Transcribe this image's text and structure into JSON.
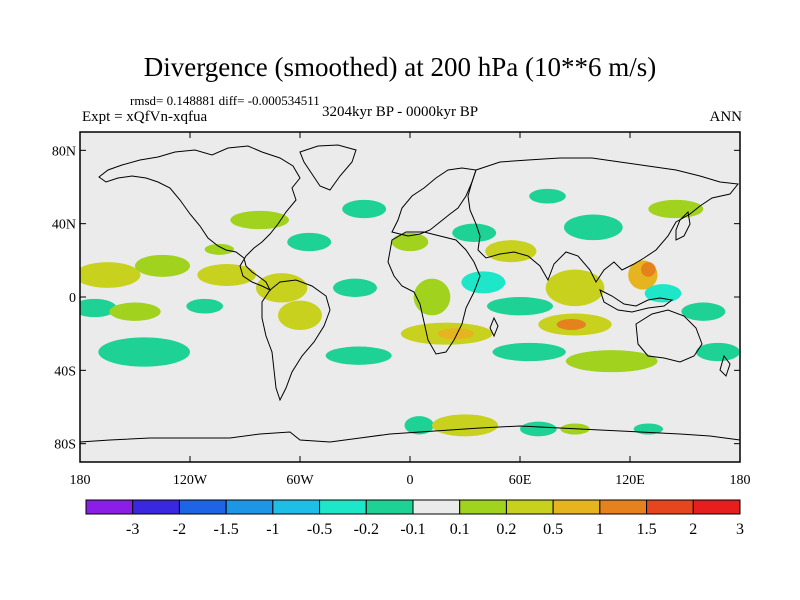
{
  "header": {
    "title": "Divergence (smoothed) at 200 hPa (10**6 m/s)",
    "stats": "rmsd= 0.148881 diff= -0.000534511",
    "experiment": "Expt = xQfVn-xqfua",
    "period": "3204kyr BP - 0000kyr BP",
    "season": "ANN"
  },
  "axes": {
    "lat_ticks": [
      {
        "label": "80N",
        "lat": 80
      },
      {
        "label": "40N",
        "lat": 40
      },
      {
        "label": "0",
        "lat": 0
      },
      {
        "label": "40S",
        "lat": -40
      },
      {
        "label": "80S",
        "lat": -80
      }
    ],
    "lon_ticks": [
      {
        "label": "180",
        "lon": -180
      },
      {
        "label": "120W",
        "lon": -120
      },
      {
        "label": "60W",
        "lon": -60
      },
      {
        "label": "0",
        "lon": 0
      },
      {
        "label": "60E",
        "lon": 60
      },
      {
        "label": "120E",
        "lon": 120
      },
      {
        "label": "180",
        "lon": 180
      }
    ],
    "lon_range": [
      -180,
      180
    ],
    "lat_range": [
      -90,
      90
    ]
  },
  "colorbar": {
    "labels": [
      "-3",
      "-2",
      "-1.5",
      "-1",
      "-0.5",
      "-0.2",
      "-0.1",
      "0.1",
      "0.2",
      "0.5",
      "1",
      "1.5",
      "2",
      "3"
    ],
    "colors": [
      "#8a1ee6",
      "#3a28e0",
      "#1e64e6",
      "#1e96e6",
      "#1ebee6",
      "#1ee6c8",
      "#1ed296",
      "#ebebeb",
      "#a0d21e",
      "#c8d21e",
      "#e6b41e",
      "#e6821e",
      "#e6461e",
      "#e61e1e"
    ]
  },
  "colors": {
    "background": "#ebebeb",
    "pos_low": "#a0d21e",
    "pos_mid": "#c8d21e",
    "pos_high": "#e6b41e",
    "pos_vhigh": "#e6821e",
    "neg_low": "#1ed296",
    "neg_mid": "#1ee6c8"
  },
  "field": {
    "blobs": [
      {
        "lon": -165,
        "lat": 12,
        "rx": 18,
        "ry": 7,
        "level": "pos_mid"
      },
      {
        "lon": -172,
        "lat": -6,
        "rx": 12,
        "ry": 5,
        "level": "neg_low"
      },
      {
        "lon": -150,
        "lat": -8,
        "rx": 14,
        "ry": 5,
        "level": "pos_low"
      },
      {
        "lon": -135,
        "lat": 17,
        "rx": 15,
        "ry": 6,
        "level": "pos_low"
      },
      {
        "lon": -145,
        "lat": -30,
        "rx": 25,
        "ry": 8,
        "level": "neg_low"
      },
      {
        "lon": -112,
        "lat": -5,
        "rx": 10,
        "ry": 4,
        "level": "neg_low"
      },
      {
        "lon": -100,
        "lat": 12,
        "rx": 16,
        "ry": 6,
        "level": "pos_mid"
      },
      {
        "lon": -104,
        "lat": 26,
        "rx": 8,
        "ry": 3,
        "level": "pos_low"
      },
      {
        "lon": -82,
        "lat": 42,
        "rx": 16,
        "ry": 5,
        "level": "pos_low"
      },
      {
        "lon": -55,
        "lat": 30,
        "rx": 12,
        "ry": 5,
        "level": "neg_low"
      },
      {
        "lon": -70,
        "lat": 5,
        "rx": 14,
        "ry": 8,
        "level": "pos_mid"
      },
      {
        "lon": -60,
        "lat": -10,
        "rx": 12,
        "ry": 8,
        "level": "pos_mid"
      },
      {
        "lon": -30,
        "lat": 5,
        "rx": 12,
        "ry": 5,
        "level": "neg_low"
      },
      {
        "lon": -28,
        "lat": -32,
        "rx": 18,
        "ry": 5,
        "level": "neg_low"
      },
      {
        "lon": -25,
        "lat": 48,
        "rx": 12,
        "ry": 5,
        "level": "neg_low"
      },
      {
        "lon": 0,
        "lat": 30,
        "rx": 10,
        "ry": 5,
        "level": "pos_low"
      },
      {
        "lon": 12,
        "lat": 0,
        "rx": 10,
        "ry": 10,
        "level": "pos_low"
      },
      {
        "lon": 20,
        "lat": -20,
        "rx": 25,
        "ry": 6,
        "level": "pos_mid"
      },
      {
        "lon": 25,
        "lat": -20,
        "rx": 10,
        "ry": 3,
        "level": "pos_high"
      },
      {
        "lon": 35,
        "lat": 35,
        "rx": 12,
        "ry": 5,
        "level": "neg_low"
      },
      {
        "lon": 40,
        "lat": 8,
        "rx": 12,
        "ry": 6,
        "level": "neg_mid"
      },
      {
        "lon": 55,
        "lat": 25,
        "rx": 14,
        "ry": 6,
        "level": "pos_mid"
      },
      {
        "lon": 60,
        "lat": -5,
        "rx": 18,
        "ry": 5,
        "level": "neg_low"
      },
      {
        "lon": 75,
        "lat": 55,
        "rx": 10,
        "ry": 4,
        "level": "neg_low"
      },
      {
        "lon": 65,
        "lat": -30,
        "rx": 20,
        "ry": 5,
        "level": "neg_low"
      },
      {
        "lon": 90,
        "lat": 5,
        "rx": 16,
        "ry": 10,
        "level": "pos_mid"
      },
      {
        "lon": 100,
        "lat": 38,
        "rx": 16,
        "ry": 7,
        "level": "neg_low"
      },
      {
        "lon": 90,
        "lat": -15,
        "rx": 20,
        "ry": 6,
        "level": "pos_mid"
      },
      {
        "lon": 88,
        "lat": -15,
        "rx": 8,
        "ry": 3,
        "level": "pos_vhigh"
      },
      {
        "lon": 127,
        "lat": 12,
        "rx": 8,
        "ry": 8,
        "level": "pos_high"
      },
      {
        "lon": 130,
        "lat": 15,
        "rx": 4,
        "ry": 4,
        "level": "pos_vhigh"
      },
      {
        "lon": 138,
        "lat": 2,
        "rx": 10,
        "ry": 5,
        "level": "neg_mid"
      },
      {
        "lon": 160,
        "lat": -8,
        "rx": 12,
        "ry": 5,
        "level": "neg_low"
      },
      {
        "lon": 110,
        "lat": -35,
        "rx": 25,
        "ry": 6,
        "level": "pos_low"
      },
      {
        "lon": 145,
        "lat": 48,
        "rx": 15,
        "ry": 5,
        "level": "pos_low"
      },
      {
        "lon": 168,
        "lat": -30,
        "rx": 12,
        "ry": 5,
        "level": "neg_low"
      },
      {
        "lon": 5,
        "lat": -70,
        "rx": 8,
        "ry": 5,
        "level": "neg_low"
      },
      {
        "lon": 30,
        "lat": -70,
        "rx": 18,
        "ry": 6,
        "level": "pos_mid"
      },
      {
        "lon": 70,
        "lat": -72,
        "rx": 10,
        "ry": 4,
        "level": "neg_low"
      },
      {
        "lon": 90,
        "lat": -72,
        "rx": 8,
        "ry": 3,
        "level": "pos_low"
      },
      {
        "lon": 130,
        "lat": -72,
        "rx": 8,
        "ry": 3,
        "level": "neg_low"
      }
    ]
  }
}
